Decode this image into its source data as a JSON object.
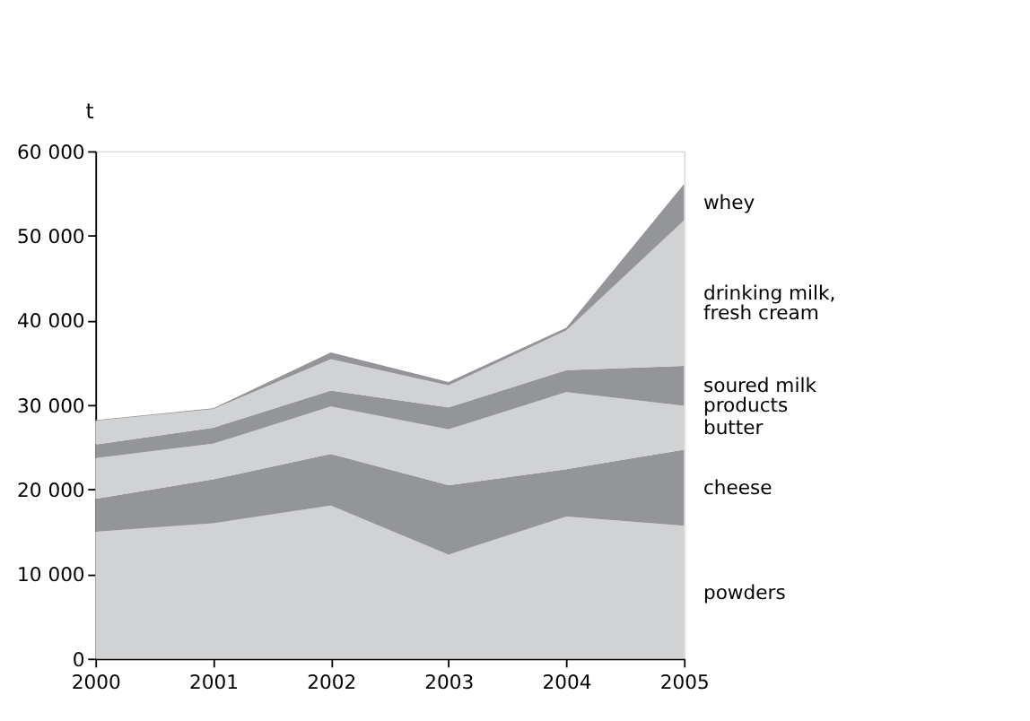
{
  "chart_data": {
    "type": "area",
    "stacked": true,
    "ylabel": "t",
    "x": [
      2000,
      2001,
      2002,
      2003,
      2004,
      2005
    ],
    "xlim": [
      2000,
      2005
    ],
    "xticks": [
      2000,
      2001,
      2002,
      2003,
      2004,
      2005
    ],
    "ylim": [
      0,
      60000
    ],
    "yticks": [
      0,
      {
        "value": 10000,
        "label": "10 000"
      },
      {
        "value": 20000,
        "label": "20 000"
      },
      {
        "value": 30000,
        "label": "30 000"
      },
      {
        "value": 40000,
        "label": "40 000"
      },
      {
        "value": 50000,
        "label": "50 000"
      },
      {
        "value": 60000,
        "label": "60 000"
      }
    ],
    "grid": false,
    "series": [
      {
        "name": "powders",
        "color": "#d1d2d4",
        "values": [
          15000,
          16000,
          18100,
          12300,
          16800,
          15700
        ]
      },
      {
        "name": "cheese",
        "color": "#939598",
        "values": [
          3900,
          5200,
          6100,
          8200,
          5600,
          9000
        ]
      },
      {
        "name": "butter",
        "color": "#d1d2d4",
        "values": [
          4800,
          4200,
          5600,
          6600,
          9100,
          5200
        ]
      },
      {
        "name": "soured milk\nproducts",
        "color": "#939598",
        "values": [
          1600,
          1900,
          1900,
          2600,
          2600,
          4700
        ]
      },
      {
        "name": "drinking milk,\nfresh cream",
        "color": "#d1d2d4",
        "values": [
          2800,
          2200,
          3700,
          2600,
          4700,
          17200
        ]
      },
      {
        "name": "whey",
        "color": "#939598",
        "values": [
          100,
          100,
          800,
          400,
          300,
          4300
        ]
      }
    ]
  }
}
